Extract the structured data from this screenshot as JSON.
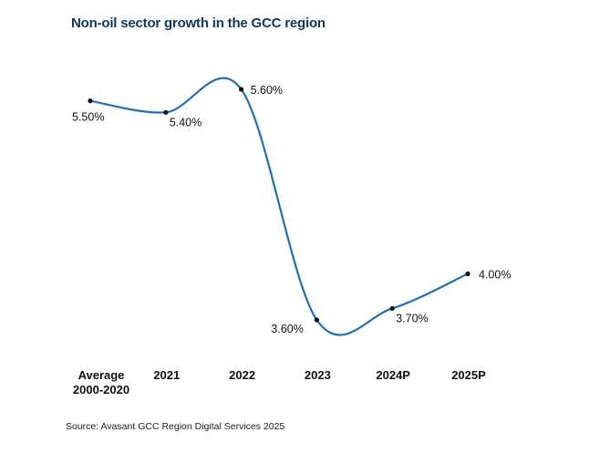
{
  "chart_data": {
    "type": "line",
    "title": "Non-oil sector growth in the GCC region",
    "xlabel": "",
    "ylabel": "",
    "categories": [
      "Average 2000-2020",
      "2021",
      "2022",
      "2023",
      "2024P",
      "2025P"
    ],
    "category_lines": [
      [
        "Average",
        "2000-2020"
      ],
      [
        "2021"
      ],
      [
        "2022"
      ],
      [
        "2023"
      ],
      [
        "2024P"
      ],
      [
        "2025P"
      ]
    ],
    "series": [
      {
        "name": "Non-oil sector growth",
        "values": [
          5.5,
          5.4,
          5.6,
          3.6,
          3.7,
          4.0
        ],
        "color": "#1f6fb8"
      }
    ],
    "data_labels": [
      "5.50%",
      "5.40%",
      "5.60%",
      "3.60%",
      "3.70%",
      "4.00%"
    ],
    "grid": false,
    "smooth": true,
    "source": "Source: Avasant GCC Region Digital Services 2025"
  }
}
